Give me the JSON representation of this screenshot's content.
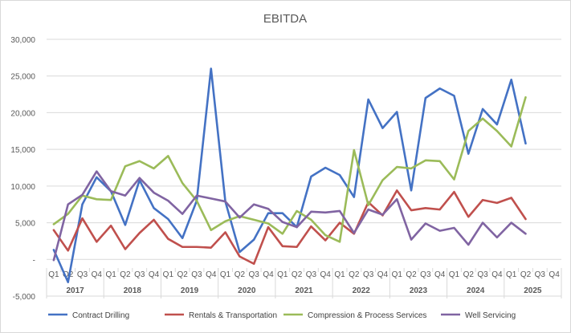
{
  "chart_data": {
    "type": "line",
    "title": "EBITDA",
    "xlabel": "",
    "ylabel": "",
    "ylim": [
      -5000,
      30000
    ],
    "yticks": [
      -5000,
      0,
      5000,
      10000,
      15000,
      20000,
      25000,
      30000
    ],
    "ytick_labels": [
      "-5,000",
      "-",
      "5,000",
      "10,000",
      "15,000",
      "20,000",
      "25,000",
      "30,000"
    ],
    "grid": true,
    "legend_position": "bottom",
    "quarter_labels": [
      "Q1",
      "Q2",
      "Q3",
      "Q4",
      "Q1",
      "Q2",
      "Q3",
      "Q4",
      "Q1",
      "Q2",
      "Q3",
      "Q4",
      "Q1",
      "Q2",
      "Q3",
      "Q4",
      "Q1",
      "Q2",
      "Q3",
      "Q4",
      "Q1",
      "Q2",
      "Q3",
      "Q4",
      "Q1",
      "Q2",
      "Q3",
      "Q4",
      "Q1",
      "Q2",
      "Q3",
      "Q4",
      "Q1",
      "Q2",
      "Q3",
      "Q4"
    ],
    "years": [
      "2017",
      "2018",
      "2019",
      "2020",
      "2021",
      "2022",
      "2023",
      "2024",
      "2025"
    ],
    "series": [
      {
        "name": "Contract Drilling",
        "color": "#4472C4",
        "values": [
          1300,
          -3100,
          7500,
          11200,
          9300,
          4700,
          10800,
          7000,
          5500,
          2900,
          8000,
          26000,
          7900,
          1000,
          2700,
          6300,
          6300,
          4400,
          11300,
          12500,
          11500,
          8500,
          21800,
          17900,
          20100,
          9400,
          22000,
          23300,
          22300,
          14400,
          20500,
          18400,
          24500,
          15800,
          null,
          null
        ]
      },
      {
        "name": "Rentals & Transportation",
        "color": "#C0504D",
        "values": [
          4000,
          1200,
          5600,
          2400,
          4600,
          1400,
          3600,
          5400,
          2800,
          1700,
          1700,
          1600,
          3700,
          400,
          -600,
          4400,
          1800,
          1700,
          4500,
          2600,
          5000,
          3500,
          7800,
          6000,
          9400,
          6700,
          7000,
          6800,
          9200,
          5800,
          8100,
          7700,
          8400,
          5500,
          null,
          null
        ]
      },
      {
        "name": "Compression & Process Services",
        "color": "#9BBB59",
        "values": [
          4800,
          6200,
          8700,
          8200,
          8100,
          12700,
          13400,
          12400,
          14100,
          10400,
          8000,
          4000,
          5200,
          5900,
          5400,
          4900,
          3500,
          6600,
          5400,
          3300,
          2400,
          14900,
          7400,
          10800,
          12600,
          12400,
          13500,
          13400,
          10900,
          17500,
          19200,
          17500,
          15400,
          22100,
          null,
          null
        ]
      },
      {
        "name": "Well Servicing",
        "color": "#8064A2",
        "values": [
          -100,
          7500,
          8800,
          12000,
          9300,
          8700,
          11100,
          9100,
          8000,
          6200,
          8700,
          8300,
          7900,
          5700,
          7500,
          6900,
          5100,
          4400,
          6500,
          6400,
          6600,
          3600,
          6800,
          6100,
          8200,
          2700,
          4900,
          3900,
          4300,
          2000,
          5000,
          3000,
          5000,
          3500,
          null,
          null
        ]
      }
    ]
  }
}
